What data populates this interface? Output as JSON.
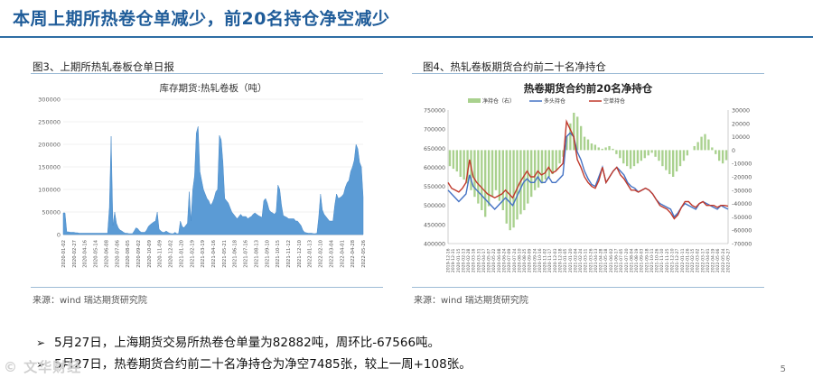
{
  "slide": {
    "title": "本周上期所热卷仓单减少，前20名持仓净空减少",
    "page_number": "5",
    "watermark": "文华财经"
  },
  "figure3": {
    "caption": "图3、上期所热轧卷板仓单日报",
    "source": "来源：wind   瑞达期货研究院"
  },
  "figure4": {
    "caption": "图4、热轧卷板期货合约前二十名净持仓",
    "source": "来源：wind   瑞达期货研究院"
  },
  "bullets": [
    "5月27日，上海期货交易所热卷仓单量为82882吨，周环比-67566吨。",
    "5月27日，热卷期货合约前二十名净持仓为净空7485张，较上一周+108张。"
  ],
  "colors": {
    "title_blue": "#1f5c99",
    "area_blue": "#5b9bd5",
    "net_green": "#a9d18e",
    "long_blue": "#4472c4",
    "short_red": "#c0392b"
  },
  "chart_data": [
    {
      "type": "area",
      "title": "库存期货:热轧卷板（吨）",
      "ylim": [
        0,
        300000
      ],
      "yticks": [
        "0",
        "50000",
        "100000",
        "150000",
        "200000",
        "250000",
        "300000"
      ],
      "xticks": [
        "2020-01-02",
        "2020-02-27",
        "2020-04-16",
        "2020-05-14",
        "2020-06-08",
        "2020-07-06",
        "2020-08-05",
        "2020-09-02",
        "2020-10-09",
        "2020-11-09",
        "2020-12-02",
        "2021-01-20",
        "2021-02-19",
        "2021-03-19",
        "2021-04-16",
        "2021-05-21",
        "2021-06-18",
        "2021-07-16",
        "2021-08-13",
        "2021-09-10",
        "2021-10-15",
        "2021-11-12",
        "2021-12-10",
        "2022-01-13",
        "2022-02-10",
        "2022-03-04",
        "2022-04-01",
        "2022-04-28",
        "2022-05-26"
      ],
      "series": [
        {
          "values": [
            48000,
            48000,
            6000,
            6000,
            5000,
            5000,
            5000,
            4000,
            4000,
            3000,
            3000,
            3000,
            3000,
            3000,
            3000,
            3000,
            3000,
            3000,
            3000,
            3000,
            3000,
            3000,
            3000,
            3000,
            3000,
            3000,
            60000,
            218000,
            20000,
            50000,
            25000,
            15000,
            10000,
            8000,
            5000,
            3000,
            3000,
            2000,
            2000,
            2000,
            8000,
            15000,
            13000,
            8000,
            5000,
            5000,
            5000,
            10000,
            18000,
            22000,
            25000,
            28000,
            30000,
            50000,
            12000,
            8000,
            5000,
            5000,
            8000,
            5000,
            3000,
            2000,
            2000,
            5000,
            2000,
            2000,
            30000,
            18000,
            15000,
            20000,
            25000,
            95000,
            30000,
            100000,
            130000,
            225000,
            240000,
            140000,
            120000,
            100000,
            90000,
            80000,
            75000,
            65000,
            70000,
            80000,
            95000,
            100000,
            220000,
            210000,
            160000,
            80000,
            75000,
            70000,
            60000,
            50000,
            45000,
            40000,
            35000,
            40000,
            45000,
            40000,
            40000,
            40000,
            35000,
            38000,
            40000,
            45000,
            48000,
            45000,
            42000,
            40000,
            38000,
            75000,
            80000,
            70000,
            55000,
            50000,
            48000,
            45000,
            50000,
            110000,
            100000,
            65000,
            42000,
            40000,
            38000,
            35000,
            35000,
            35000,
            35000,
            30000,
            30000,
            25000,
            20000,
            10000,
            5000,
            4000,
            3000,
            3000,
            3000,
            2000,
            2000,
            3000,
            40000,
            90000,
            55000,
            45000,
            40000,
            35000,
            30000,
            30000,
            30000,
            65000,
            90000,
            80000,
            82000,
            85000,
            90000,
            105000,
            115000,
            120000,
            140000,
            150000,
            165000,
            200000,
            190000,
            160000,
            150000,
            82882
          ]
        }
      ]
    },
    {
      "type": "line",
      "title": "热卷期货合约前20名净持仓",
      "y_left_lim": [
        400000,
        750000
      ],
      "y_left_ticks": [
        "400000",
        "450000",
        "500000",
        "550000",
        "600000",
        "650000",
        "700000",
        "750000"
      ],
      "y_right_lim": [
        -70000,
        30000
      ],
      "y_right_ticks": [
        "-70000",
        "-60000",
        "-50000",
        "-40000",
        "-30000",
        "-20000",
        "-10000",
        "0",
        "10000",
        "20000",
        "30000"
      ],
      "xticks": [
        "2019-12-16",
        "2019-12-31",
        "2020-01-15",
        "2020-02-13",
        "2020-02-28",
        "2020-03-16",
        "2020-03-31",
        "2020-04-17",
        "2020-05-07",
        "2020-05-22",
        "2020-06-08",
        "2020-06-24",
        "2020-07-09",
        "2020-07-24",
        "2020-08-10",
        "2020-08-25",
        "2020-09-09",
        "2020-09-24",
        "2020-10-16",
        "2020-11-02",
        "2020-11-17",
        "2020-12-03",
        "2020-12-18",
        "2021-01-05",
        "2021-01-20",
        "2021-02-04",
        "2021-02-24",
        "2021-03-11",
        "2021-03-26",
        "2021-04-13",
        "2021-04-28",
        "2021-05-18",
        "2021-06-02",
        "2021-06-17",
        "2021-07-05",
        "2021-07-20",
        "2021-08-04",
        "2021-08-19",
        "2021-09-03",
        "2021-09-18",
        "2021-10-11",
        "2021-10-26",
        "2021-11-10",
        "2021-11-25",
        "2021-12-10",
        "2021-12-27",
        "2022-01-11",
        "2022-01-26",
        "2022-02-15",
        "2022-03-02",
        "2022-03-17",
        "2022-04-01",
        "2022-04-19",
        "2022-05-06",
        "2022-05-24",
        "2022-05-27"
      ],
      "legend": [
        "净持仓（右）",
        "多头持仓",
        "空单持仓"
      ],
      "series": [
        {
          "name": "净持仓（右）",
          "axis": "right",
          "values": [
            -12000,
            -14000,
            -16000,
            -20000,
            -22000,
            -25000,
            -30000,
            -35000,
            -40000,
            -45000,
            -50000,
            -42000,
            -35000,
            -30000,
            -38000,
            -45000,
            -55000,
            -60000,
            -58000,
            -52000,
            -48000,
            -45000,
            -40000,
            -35000,
            -30000,
            -28000,
            -25000,
            -22000,
            -20000,
            -18000,
            -15000,
            -10000,
            -5000,
            10000,
            20000,
            28000,
            25000,
            18000,
            10000,
            8000,
            5000,
            4000,
            2000,
            1000,
            2000,
            3000,
            1000,
            -3000,
            -6000,
            -10000,
            -12000,
            -14000,
            -12000,
            -10000,
            -8000,
            -6000,
            -4000,
            -2000,
            -5000,
            -8000,
            -12000,
            -15000,
            -18000,
            -20000,
            -16000,
            -12000,
            -8000,
            -4000,
            0,
            3000,
            6000,
            10000,
            12000,
            8000,
            2000,
            -3000,
            -8000,
            -10000,
            -7485
          ]
        },
        {
          "name": "多头持仓",
          "axis": "left",
          "values": [
            540000,
            530000,
            520000,
            510000,
            520000,
            530000,
            580000,
            550000,
            540000,
            530000,
            520000,
            510000,
            500000,
            490000,
            500000,
            510000,
            520000,
            510000,
            500000,
            520000,
            540000,
            560000,
            570000,
            560000,
            560000,
            575000,
            560000,
            560000,
            575000,
            560000,
            560000,
            570000,
            580000,
            680000,
            690000,
            680000,
            640000,
            620000,
            590000,
            570000,
            555000,
            550000,
            575000,
            600000,
            560000,
            575000,
            590000,
            600000,
            590000,
            580000,
            560000,
            550000,
            545000,
            535000,
            540000,
            545000,
            540000,
            530000,
            515000,
            505000,
            500000,
            495000,
            490000,
            470000,
            480000,
            495000,
            505000,
            500000,
            495000,
            490000,
            505000,
            510000,
            505000,
            500000,
            495000,
            490000,
            500000,
            495000,
            490000
          ]
        },
        {
          "name": "空单持仓",
          "axis": "left",
          "values": [
            560000,
            545000,
            540000,
            535000,
            545000,
            560000,
            620000,
            575000,
            560000,
            550000,
            540000,
            530000,
            525000,
            520000,
            525000,
            530000,
            540000,
            530000,
            520000,
            540000,
            560000,
            575000,
            590000,
            575000,
            575000,
            590000,
            580000,
            585000,
            600000,
            585000,
            590000,
            600000,
            610000,
            720000,
            700000,
            680000,
            620000,
            600000,
            575000,
            560000,
            550000,
            545000,
            565000,
            600000,
            560000,
            575000,
            590000,
            600000,
            580000,
            570000,
            555000,
            540000,
            540000,
            535000,
            540000,
            545000,
            540000,
            530000,
            515000,
            500000,
            495000,
            490000,
            480000,
            465000,
            475000,
            495000,
            510000,
            510000,
            500000,
            495000,
            505000,
            510000,
            500000,
            500000,
            500000,
            495000,
            500000,
            500000,
            498000
          ]
        }
      ]
    }
  ]
}
